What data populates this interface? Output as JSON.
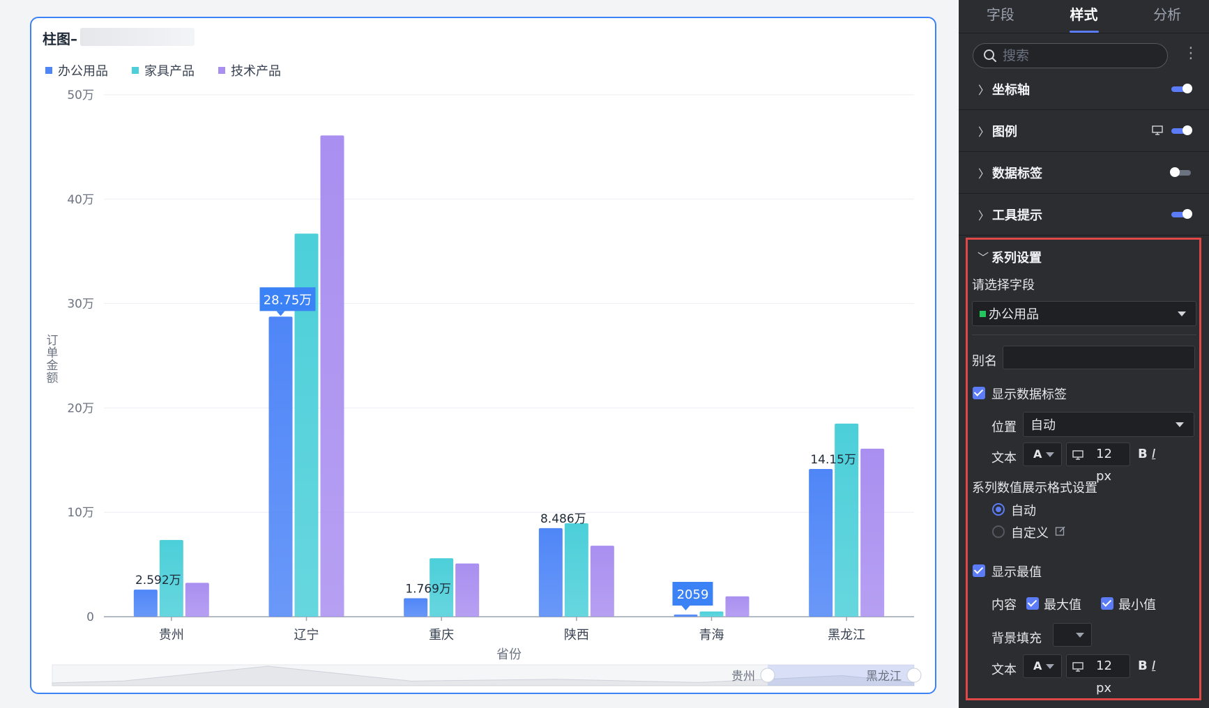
{
  "chart_card": {
    "title": "柱图–",
    "legend": [
      {
        "label": "办公用品",
        "color": "#4f86f7"
      },
      {
        "label": "家具产品",
        "color": "#4ccfd9"
      },
      {
        "label": "技术产品",
        "color": "#a98ff0"
      }
    ]
  },
  "chart_data": {
    "type": "bar",
    "title": "",
    "xlabel": "省份",
    "ylabel": "订单金额",
    "categories": [
      "贵州",
      "辽宁",
      "重庆",
      "陕西",
      "青海",
      "黑龙江"
    ],
    "series": [
      {
        "name": "办公用品",
        "color": "#4f86f7",
        "values": [
          25920,
          287500,
          17690,
          84860,
          2059,
          141500
        ]
      },
      {
        "name": "家具产品",
        "color": "#4ccfd9",
        "values": [
          73500,
          367000,
          56000,
          89500,
          5000,
          185000
        ]
      },
      {
        "name": "技术产品",
        "color": "#a98ff0",
        "values": [
          32500,
          461000,
          51000,
          68000,
          19500,
          161000
        ]
      }
    ],
    "ylim": [
      0,
      500000
    ],
    "yticks": [
      {
        "v": 0,
        "label": "0"
      },
      {
        "v": 100000,
        "label": "10万"
      },
      {
        "v": 200000,
        "label": "20万"
      },
      {
        "v": 300000,
        "label": "30万"
      },
      {
        "v": 400000,
        "label": "40万"
      },
      {
        "v": 500000,
        "label": "50万"
      }
    ],
    "grid": true,
    "legend_position": "top-left",
    "data_labels": [
      {
        "cat": 0,
        "text": "2.592万",
        "style": "plain"
      },
      {
        "cat": 1,
        "text": "28.75万",
        "style": "badge"
      },
      {
        "cat": 2,
        "text": "1.769万",
        "style": "plain"
      },
      {
        "cat": 3,
        "text": "8.486万",
        "style": "plain"
      },
      {
        "cat": 4,
        "text": "2059",
        "style": "badge"
      },
      {
        "cat": 5,
        "text": "14.15万",
        "style": "plain"
      }
    ],
    "zoom_start_label": "贵州",
    "zoom_end_label": "黑龙江"
  },
  "panel": {
    "tabs": [
      {
        "label": "字段",
        "active": false
      },
      {
        "label": "样式",
        "active": true
      },
      {
        "label": "分析",
        "active": false
      }
    ],
    "search_placeholder": "搜索",
    "sections": [
      {
        "label": "坐标轴",
        "enabled": true,
        "has_monitor": false
      },
      {
        "label": "图例",
        "enabled": true,
        "has_monitor": true
      },
      {
        "label": "数据标签",
        "enabled": false,
        "has_monitor": false
      },
      {
        "label": "工具提示",
        "enabled": true,
        "has_monitor": false
      }
    ],
    "series_settings": {
      "title": "系列设置",
      "field_label": "请选择字段",
      "field_value": "办公用品",
      "field_color": "#22c55e",
      "alias_label": "别名",
      "alias_value": "",
      "show_data_label": "显示数据标签",
      "position_label": "位置",
      "position_value": "自动",
      "text_label": "文本",
      "font_glyph": "A",
      "font_size": "12 px",
      "bold": "B",
      "italic": "I",
      "format_title": "系列数值展示格式设置",
      "format_auto": "自动",
      "format_custom": "自定义",
      "show_extreme": "显示最值",
      "content_label": "内容",
      "max_label": "最大值",
      "min_label": "最小值",
      "bg_fill_label": "背景填充",
      "text2_label": "文本",
      "font_glyph2": "A",
      "font_size2": "12 px",
      "bold2": "B",
      "italic2": "I"
    }
  }
}
